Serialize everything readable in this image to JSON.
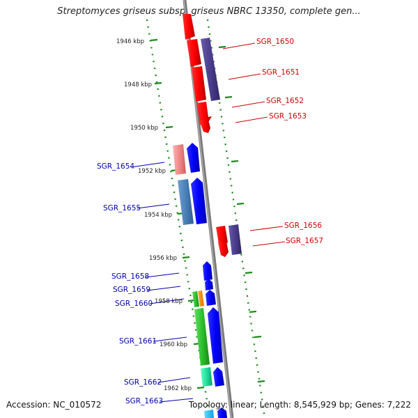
{
  "title": "Streptomyces griseus subsp. griseus NBRC 13350, complete gen...",
  "footer": {
    "accession": "Accession: NC_010572",
    "summary": "Topology: linear; Length: 8,545,929 bp; Genes: 7,222"
  },
  "kbp_labels": [
    "1946 kbp",
    "1948 kbp",
    "1950 kbp",
    "1952 kbp",
    "1954 kbp",
    "1956 kbp",
    "1958 kbp",
    "1960 kbp",
    "1962 kbp"
  ],
  "genes": [
    {
      "name": "SGR_1650",
      "strand": "forward",
      "color": "#cc0000"
    },
    {
      "name": "SGR_1651",
      "strand": "forward",
      "color": "#cc0000"
    },
    {
      "name": "SGR_1652",
      "strand": "forward",
      "color": "#cc0000"
    },
    {
      "name": "SGR_1653",
      "strand": "forward",
      "color": "#cc0000"
    },
    {
      "name": "SGR_1654",
      "strand": "reverse",
      "color": "#0000aa"
    },
    {
      "name": "SGR_1655",
      "strand": "reverse",
      "color": "#0000aa"
    },
    {
      "name": "SGR_1656",
      "strand": "forward",
      "color": "#cc0000"
    },
    {
      "name": "SGR_1657",
      "strand": "forward",
      "color": "#cc0000"
    },
    {
      "name": "SGR_1658",
      "strand": "reverse",
      "color": "#0000aa"
    },
    {
      "name": "SGR_1659",
      "strand": "reverse",
      "color": "#0000aa"
    },
    {
      "name": "SGR_1660",
      "strand": "reverse",
      "color": "#0000aa"
    },
    {
      "name": "SGR_1661",
      "strand": "reverse",
      "color": "#0000aa"
    },
    {
      "name": "SGR_1662",
      "strand": "reverse",
      "color": "#0000aa"
    },
    {
      "name": "SGR_1663",
      "strand": "reverse",
      "color": "#0000aa"
    }
  ]
}
